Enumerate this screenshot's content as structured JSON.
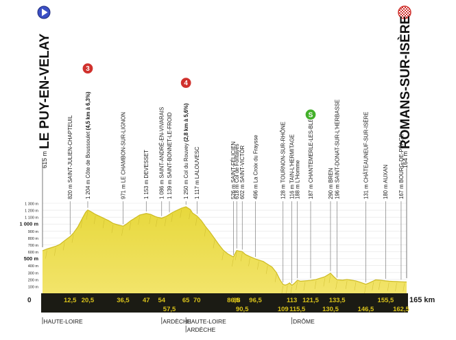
{
  "chart_data": {
    "type": "area",
    "title": "",
    "xlabel": "",
    "ylabel": "",
    "x_unit": "km",
    "ylim": [
      0,
      1300
    ],
    "xlim": [
      0,
      165
    ],
    "start": {
      "elevation_label": "615 m",
      "name": "LE PUY-EN-VELAY"
    },
    "finish": {
      "elevation_label": "164 m",
      "name": "ROMANS-SUR-ISÈRE"
    },
    "y_ticks": [
      {
        "v": 100,
        "label": "100 m",
        "bold": false
      },
      {
        "v": 200,
        "label": "200 m",
        "bold": false
      },
      {
        "v": 300,
        "label": "300 m",
        "bold": false
      },
      {
        "v": 400,
        "label": "400 m",
        "bold": false
      },
      {
        "v": 500,
        "label": "500 m",
        "bold": true
      },
      {
        "v": 600,
        "label": "600 m",
        "bold": false
      },
      {
        "v": 700,
        "label": "700 m",
        "bold": false
      },
      {
        "v": 800,
        "label": "800 m",
        "bold": false
      },
      {
        "v": 900,
        "label": "900 m",
        "bold": false
      },
      {
        "v": 1000,
        "label": "1 000 m",
        "bold": true
      },
      {
        "v": 1100,
        "label": "1 100 m",
        "bold": false
      },
      {
        "v": 1200,
        "label": "1 200 m",
        "bold": false
      },
      {
        "v": 1300,
        "label": "1 300 m",
        "bold": false
      }
    ],
    "zero_label": "0",
    "end_label": "165 km",
    "km_ticks": [
      {
        "v": 12.5,
        "label": "12,5",
        "row": 1
      },
      {
        "v": 20.5,
        "label": "20,5",
        "row": 1
      },
      {
        "v": 36.5,
        "label": "36,5",
        "row": 1
      },
      {
        "v": 47,
        "label": "47",
        "row": 1
      },
      {
        "v": 54,
        "label": "54",
        "row": 1
      },
      {
        "v": 57.5,
        "label": "57,5",
        "row": 2
      },
      {
        "v": 65,
        "label": "65",
        "row": 1
      },
      {
        "v": 70,
        "label": "70",
        "row": 1
      },
      {
        "v": 86.5,
        "label": "86,5",
        "row": 1
      },
      {
        "v": 88,
        "label": "88",
        "row": 1
      },
      {
        "v": 90.5,
        "label": "90,5",
        "row": 2
      },
      {
        "v": 96.5,
        "label": "96,5",
        "row": 1
      },
      {
        "v": 109,
        "label": "109",
        "row": 2
      },
      {
        "v": 113,
        "label": "113",
        "row": 1
      },
      {
        "v": 115.5,
        "label": "115,5",
        "row": 2
      },
      {
        "v": 121.5,
        "label": "121,5",
        "row": 1
      },
      {
        "v": 130.5,
        "label": "130,5",
        "row": 2
      },
      {
        "v": 133.5,
        "label": "133,5",
        "row": 1
      },
      {
        "v": 146.5,
        "label": "146,5",
        "row": 2
      },
      {
        "v": 155.5,
        "label": "155,5",
        "row": 1
      },
      {
        "v": 162.5,
        "label": "162,5",
        "row": 2
      }
    ],
    "profile": [
      [
        0,
        615
      ],
      [
        2,
        640
      ],
      [
        4,
        660
      ],
      [
        6,
        680
      ],
      [
        8,
        710
      ],
      [
        10,
        760
      ],
      [
        12.5,
        820
      ],
      [
        14,
        870
      ],
      [
        16,
        960
      ],
      [
        18,
        1080
      ],
      [
        19.5,
        1170
      ],
      [
        20.5,
        1204
      ],
      [
        22,
        1180
      ],
      [
        24,
        1140
      ],
      [
        26,
        1110
      ],
      [
        28,
        1080
      ],
      [
        30,
        1050
      ],
      [
        32,
        1010
      ],
      [
        34,
        990
      ],
      [
        36.5,
        971
      ],
      [
        38,
        1000
      ],
      [
        40,
        1050
      ],
      [
        42,
        1090
      ],
      [
        44,
        1130
      ],
      [
        47,
        1153
      ],
      [
        49,
        1140
      ],
      [
        51,
        1110
      ],
      [
        52,
        1100
      ],
      [
        54,
        1086
      ],
      [
        56,
        1110
      ],
      [
        57.5,
        1139
      ],
      [
        59,
        1170
      ],
      [
        61,
        1200
      ],
      [
        63,
        1230
      ],
      [
        65,
        1250
      ],
      [
        67,
        1210
      ],
      [
        68,
        1160
      ],
      [
        70,
        1117
      ],
      [
        72,
        1050
      ],
      [
        74,
        960
      ],
      [
        76,
        880
      ],
      [
        78,
        790
      ],
      [
        80,
        700
      ],
      [
        82,
        620
      ],
      [
        84,
        570
      ],
      [
        86.5,
        526
      ],
      [
        87,
        560
      ],
      [
        88,
        618
      ],
      [
        89,
        610
      ],
      [
        90.5,
        602
      ],
      [
        92,
        560
      ],
      [
        94,
        530
      ],
      [
        96.5,
        496
      ],
      [
        98,
        480
      ],
      [
        100,
        460
      ],
      [
        102,
        420
      ],
      [
        104,
        380
      ],
      [
        106,
        300
      ],
      [
        107.5,
        200
      ],
      [
        109,
        128
      ],
      [
        110,
        118
      ],
      [
        111,
        130
      ],
      [
        112,
        150
      ],
      [
        113,
        116
      ],
      [
        114,
        140
      ],
      [
        115.5,
        188
      ],
      [
        117,
        175
      ],
      [
        119,
        180
      ],
      [
        121.5,
        187
      ],
      [
        124,
        200
      ],
      [
        126,
        220
      ],
      [
        128,
        240
      ],
      [
        129.5,
        270
      ],
      [
        130.5,
        290
      ],
      [
        132,
        240
      ],
      [
        133.5,
        196
      ],
      [
        136,
        190
      ],
      [
        138,
        200
      ],
      [
        140,
        190
      ],
      [
        142,
        180
      ],
      [
        144,
        160
      ],
      [
        146.5,
        131
      ],
      [
        148,
        150
      ],
      [
        150,
        180
      ],
      [
        151,
        195
      ],
      [
        153,
        190
      ],
      [
        155.5,
        180
      ],
      [
        157,
        175
      ],
      [
        159,
        172
      ],
      [
        160.5,
        170
      ],
      [
        162.5,
        167
      ],
      [
        164,
        164
      ],
      [
        165,
        164
      ]
    ],
    "places": [
      {
        "km": 12.5,
        "text": "820 m SAINT-JULIEN-CHAPTEUIL",
        "bold": false
      },
      {
        "km": 20.5,
        "text": "1 204 m Côte de Boussoulet ",
        "bold_suffix": "(4,5 km à 6,3%)",
        "climb": "3"
      },
      {
        "km": 36.5,
        "text": "971 m LE CHAMBON-SUR-LIGNON"
      },
      {
        "km": 47,
        "text": "1 153 m DEVESSET"
      },
      {
        "km": 54,
        "text": "1 086 m SAINT-ANDRÉ-EN-VIVARAIS"
      },
      {
        "km": 57.5,
        "text": "1 139 m SAINT-BONNET-LE-FROID"
      },
      {
        "km": 65,
        "text": "1 250 m Col du Rouvey ",
        "bold_suffix": "(2,8 km à 5,6%)",
        "climb": "4"
      },
      {
        "km": 70,
        "text": "1 117 m LALOUVESC"
      },
      {
        "km": 86.5,
        "text": "526 m SAINT-FÉLICIEN"
      },
      {
        "km": 88,
        "text": "618 m Col de Fontayes"
      },
      {
        "km": 90.5,
        "text": "602 m SAINT-VICTOR"
      },
      {
        "km": 96.5,
        "text": "496 m La Croix du Fraysse"
      },
      {
        "km": 109,
        "text": "128 m TOURNON-SUR-RHÔNE"
      },
      {
        "km": 113,
        "text": "116 m TAIN-L'HERMITAGE"
      },
      {
        "km": 115.5,
        "text": "188 m L'Homme"
      },
      {
        "km": 121.5,
        "text": "187 m CHANTEMERLE-LES-BLÉS",
        "sprint": "S"
      },
      {
        "km": 130.5,
        "text": "290 m BREN"
      },
      {
        "km": 133.5,
        "text": "196 m SAINT-DONAT-SUR-L'HERBASSE"
      },
      {
        "km": 146.5,
        "text": "131 m CHÂTEAUNEUF-SUR-ISÈRE"
      },
      {
        "km": 155.5,
        "text": "180 m AUXAN"
      },
      {
        "km": 162.5,
        "text": "167 m BOURG-DE-PÉAGE"
      }
    ],
    "regions": [
      {
        "km": 0,
        "text": "HAUTE-LOIRE",
        "row": 1
      },
      {
        "km": 54,
        "text": "ARDÈCHE",
        "row": 1
      },
      {
        "km": 65,
        "text": "HAUTE-LOIRE",
        "row": 1
      },
      {
        "km": 65,
        "text": "ARDÈCHE",
        "row": 2
      },
      {
        "km": 113,
        "text": "DRÔME",
        "row": 1
      }
    ],
    "colors": {
      "fill": "#eadc45",
      "fill_dark": "#cdbb23",
      "base_bar": "#1b1b14",
      "km_text": "#d9c21a",
      "climb_badge": "#d0312d",
      "sprint_badge": "#43b02a",
      "start_badge": "#3b4fc4"
    }
  }
}
